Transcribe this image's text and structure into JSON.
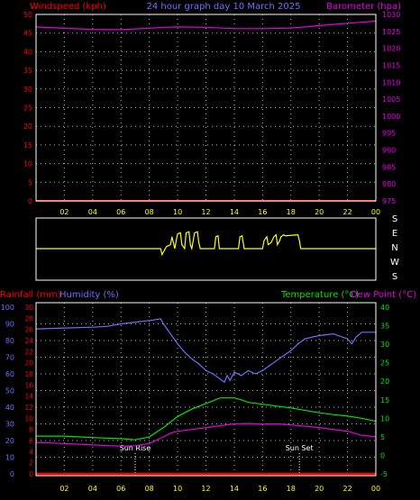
{
  "colors": {
    "red": "#ff0000",
    "blue": "#6e6eff",
    "magenta": "#e600e6",
    "green": "#00e600",
    "yellow": "#ffff00",
    "grid": "#b4b4b4",
    "label_white": "#ffffff",
    "axis_yellow": "#ffff00"
  },
  "chart_data": [
    {
      "type": "line",
      "title": "24 hour graph day  10 March 2025",
      "left_axis_label": "Windspeed (kph)",
      "right_axis_label": "Barometer (hpa)",
      "x_ticks": [
        "02",
        "04",
        "06",
        "08",
        "10",
        "12",
        "14",
        "16",
        "18",
        "20",
        "22",
        "00"
      ],
      "left_ylim": [
        0,
        50
      ],
      "left_ticks": [
        0,
        5,
        10,
        15,
        20,
        25,
        30,
        35,
        40,
        45,
        50
      ],
      "right_ylim": [
        975,
        1030
      ],
      "right_ticks": [
        975,
        980,
        985,
        990,
        995,
        1000,
        1005,
        1010,
        1015,
        1020,
        1025,
        1030
      ],
      "grid": true,
      "series": [
        {
          "axis": "right",
          "color": "#e600e6",
          "x": [
            0,
            2,
            4,
            6,
            8,
            9,
            10,
            12,
            14,
            16,
            18,
            19,
            20,
            22,
            24
          ],
          "y": [
            1026.3,
            1025.9,
            1025.6,
            1025.5,
            1025.9,
            1026.2,
            1026.3,
            1026.2,
            1025.8,
            1025.8,
            1026.0,
            1026.3,
            1026.7,
            1027.4,
            1028.0
          ]
        },
        {
          "axis": "left",
          "color": "#ff0000",
          "x": [
            0,
            24
          ],
          "y": [
            0,
            0
          ]
        }
      ]
    },
    {
      "type": "line",
      "x_ticks": [
        "02",
        "04",
        "06",
        "08",
        "10",
        "12",
        "14",
        "16",
        "18",
        "20",
        "22",
        "00"
      ],
      "direction_labels": [
        "S",
        "E",
        "N",
        "W",
        "S"
      ],
      "grid": false,
      "series": [
        {
          "name": "wind-direction",
          "color": "#ffff00",
          "x": [
            0,
            8.8,
            8.9,
            9.2,
            9.5,
            9.6,
            9.8,
            9.95,
            10.0,
            10.2,
            10.3,
            10.5,
            10.6,
            10.8,
            10.9,
            11.0,
            11.2,
            11.4,
            11.5,
            11.6,
            11.8,
            11.9,
            12.6,
            12.7,
            12.85,
            12.95,
            13.1,
            14.3,
            14.4,
            14.55,
            14.7,
            14.8,
            16.0,
            16.1,
            16.3,
            16.4,
            16.6,
            16.8,
            16.95,
            17.05,
            17.2,
            17.3,
            17.5,
            17.6,
            18.5,
            18.6,
            18.7,
            24
          ],
          "y": [
            0,
            0,
            -0.3,
            0.1,
            0.2,
            0.6,
            0,
            0.6,
            0.75,
            0.8,
            0.2,
            0,
            0.8,
            0.85,
            0.2,
            0,
            0.8,
            0.85,
            0.3,
            0,
            0,
            0,
            0,
            0.6,
            0.65,
            0,
            0,
            0,
            0.6,
            0.65,
            0,
            0,
            0,
            0.4,
            0.6,
            0.2,
            0.3,
            0.6,
            0.7,
            0.2,
            0.4,
            0.6,
            0.7,
            0.65,
            0.7,
            0.4,
            0,
            0
          ]
        }
      ]
    },
    {
      "type": "line",
      "left_axis_labels": [
        "Rainfall (mm)",
        "Humidity (%)"
      ],
      "right_axis_labels": [
        "Temperature (°C)",
        "Dew Point (°C)"
      ],
      "x_ticks": [
        "02",
        "04",
        "06",
        "08",
        "10",
        "12",
        "14",
        "16",
        "18",
        "20",
        "22",
        "00"
      ],
      "humidity_ylim": [
        0,
        100
      ],
      "humidity_ticks": [
        0,
        10,
        20,
        30,
        40,
        50,
        60,
        70,
        80,
        90,
        100
      ],
      "rain_ylim": [
        0,
        30
      ],
      "rain_ticks": [
        0,
        2,
        4,
        6,
        8,
        10,
        12,
        14,
        16,
        18,
        20,
        22,
        24,
        26,
        28,
        30
      ],
      "temp_ylim": [
        -5,
        40
      ],
      "temp_ticks": [
        -5,
        0,
        5,
        10,
        15,
        20,
        25,
        30,
        35,
        40
      ],
      "grid": true,
      "annotations": [
        {
          "label": "Sun Rise",
          "x": 7.0
        },
        {
          "label": "Sun Set",
          "x": 18.6
        }
      ],
      "series": [
        {
          "axis": "humidity",
          "color": "#6e6eff",
          "x": [
            0,
            2,
            4,
            5,
            6,
            7,
            8,
            8.8,
            9.0,
            9.5,
            10,
            10.5,
            11,
            11.5,
            12,
            12.5,
            13,
            13.3,
            13.5,
            13.7,
            14,
            14.5,
            15,
            15.5,
            16,
            16.5,
            17,
            17.5,
            18,
            18.5,
            19,
            20,
            21,
            22,
            22.3,
            22.6,
            23,
            24
          ],
          "y": [
            87,
            87.5,
            88,
            88.5,
            90,
            91,
            92,
            93,
            90,
            84,
            78,
            73,
            69,
            66,
            62,
            60,
            57,
            55,
            59,
            56,
            61,
            59,
            62,
            60,
            62,
            65,
            68,
            71,
            74,
            78,
            81,
            83,
            84,
            81,
            78,
            82,
            85,
            85
          ]
        },
        {
          "axis": "temp",
          "color": "#00e600",
          "x": [
            0,
            2,
            3,
            4,
            6,
            7,
            8,
            9,
            10,
            11,
            12,
            13,
            14,
            14.5,
            15,
            16,
            17,
            18,
            20,
            21,
            22,
            23,
            24
          ],
          "y": [
            5.2,
            5.2,
            5.0,
            4.8,
            4.5,
            4.2,
            5.0,
            7.5,
            10.5,
            12.5,
            14.0,
            15.5,
            15.5,
            15.0,
            14.3,
            13.8,
            13.3,
            12.8,
            11.5,
            11.0,
            10.6,
            10.0,
            9.2
          ]
        },
        {
          "axis": "temp",
          "color": "#e600e6",
          "x": [
            0,
            2,
            4,
            6,
            7,
            8,
            9,
            9.5,
            10,
            11,
            12,
            13,
            14,
            15,
            16,
            17,
            18,
            20,
            22,
            23,
            24
          ],
          "y": [
            3.5,
            3.2,
            2.8,
            2.5,
            2.6,
            3.2,
            5.0,
            6.0,
            6.5,
            7.0,
            7.5,
            8.0,
            8.5,
            8.6,
            8.4,
            8.5,
            8.2,
            7.5,
            6.5,
            5.4,
            5.0
          ]
        },
        {
          "axis": "rain",
          "color": "#ff0000",
          "x": [
            0,
            24
          ],
          "y": [
            0,
            0
          ]
        }
      ]
    }
  ]
}
